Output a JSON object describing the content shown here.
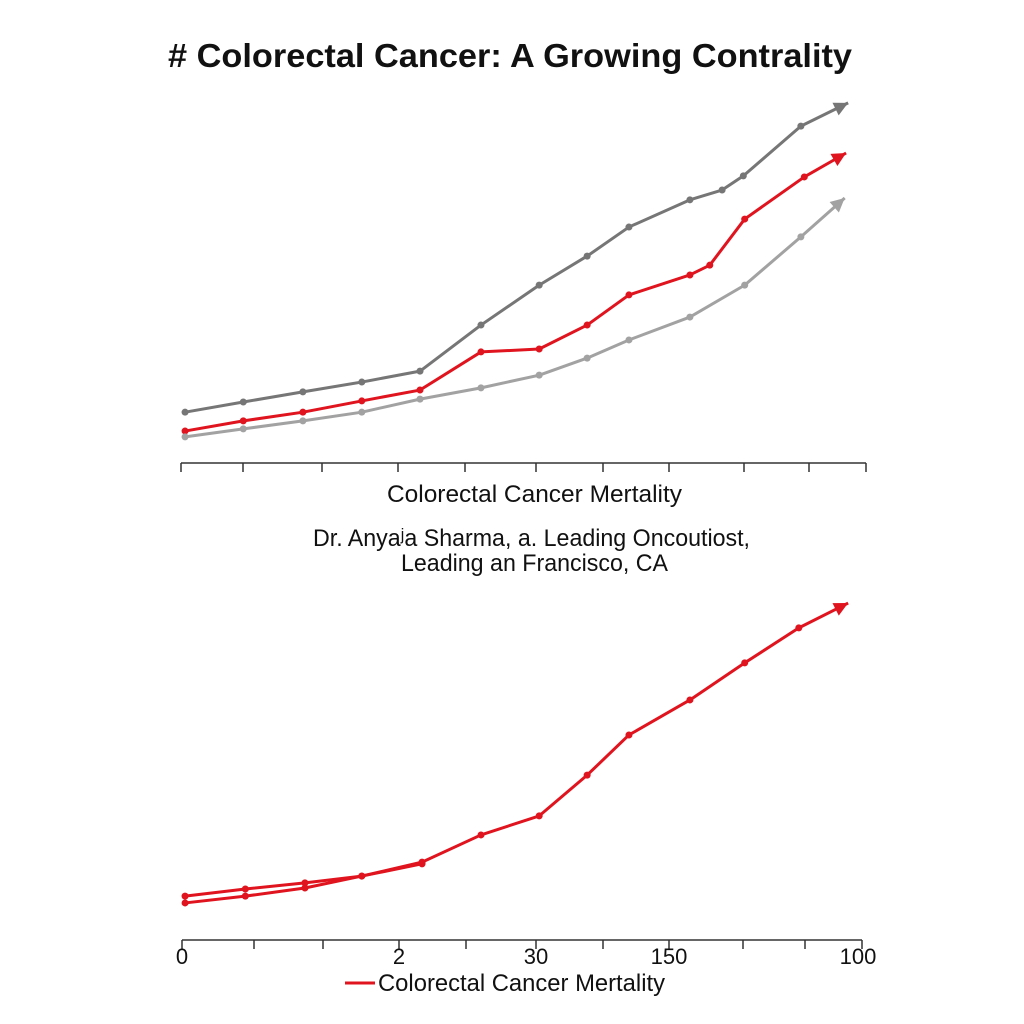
{
  "chart_data": [
    {
      "type": "line",
      "title": "# Colorectal Cancer: A Growing Contrality",
      "xlabel": "Colorectal Cancer Mertality",
      "subtitle_lines": [
        "Dr. Anyaʲa Sharma, a. Leading Oncoutiost,",
        "Leading an Francisco, CA"
      ],
      "xlim": [
        0,
        100
      ],
      "ylim": [
        0,
        100
      ],
      "grid": false,
      "series": [
        {
          "color": "#767676",
          "arrow": true,
          "x": [
            0.3,
            8.8,
            17.5,
            26.1,
            34.6,
            43.5,
            52.0,
            59.0,
            65.1,
            74.0,
            78.7,
            81.8,
            90.2,
            97.1
          ],
          "y": [
            14.0,
            16.8,
            19.6,
            22.3,
            25.3,
            38.0,
            49.0,
            57.0,
            65.0,
            72.5,
            75.2,
            79.1,
            92.8,
            99.2
          ]
        },
        {
          "color": "#e0141e",
          "arrow": true,
          "x": [
            0.3,
            8.8,
            17.5,
            26.1,
            34.6,
            43.5,
            52.0,
            59.0,
            65.1,
            74.0,
            76.9,
            82.0,
            90.7,
            96.8
          ],
          "y": [
            8.8,
            11.6,
            14.0,
            17.1,
            20.1,
            30.6,
            31.4,
            38.0,
            46.3,
            51.8,
            54.5,
            67.2,
            78.8,
            85.4
          ]
        },
        {
          "color": "#a2a2a2",
          "arrow": true,
          "x": [
            0.3,
            8.8,
            17.5,
            26.1,
            34.6,
            43.5,
            52.0,
            59.0,
            65.1,
            74.0,
            82.0,
            90.2,
            96.6
          ],
          "y": [
            7.2,
            9.4,
            11.6,
            14.0,
            17.6,
            20.7,
            24.2,
            28.9,
            33.9,
            40.2,
            49.0,
            62.3,
            73.0
          ]
        }
      ]
    },
    {
      "type": "line",
      "xlim": [
        0,
        100
      ],
      "ylim": [
        0,
        100
      ],
      "grid": false,
      "tick_labels": [
        "0",
        "2",
        "30",
        "150",
        "100"
      ],
      "legend": {
        "placement": "bottom",
        "entries": [
          "Colorectal Cancer Mertality"
        ]
      },
      "series": [
        {
          "name": "Colorectal Cancer Mertality",
          "color": "#e0141e",
          "arrow": true,
          "x": [
            0.3,
            9.1,
            17.8,
            26.1,
            34.9,
            43.5,
            52.0,
            59.0,
            65.1,
            74.0,
            82.0,
            89.9,
            97.1
          ],
          "y": [
            12.9,
            15.0,
            16.8,
            18.8,
            22.9,
            30.9,
            36.5,
            48.5,
            60.3,
            70.6,
            81.5,
            91.8,
            99.1
          ]
        },
        {
          "color": "#e0141e",
          "arrow": false,
          "x": [
            0.3,
            9.1,
            17.8,
            26.1,
            34.9
          ],
          "y": [
            10.9,
            12.9,
            15.3,
            18.8,
            22.4
          ]
        }
      ]
    }
  ]
}
